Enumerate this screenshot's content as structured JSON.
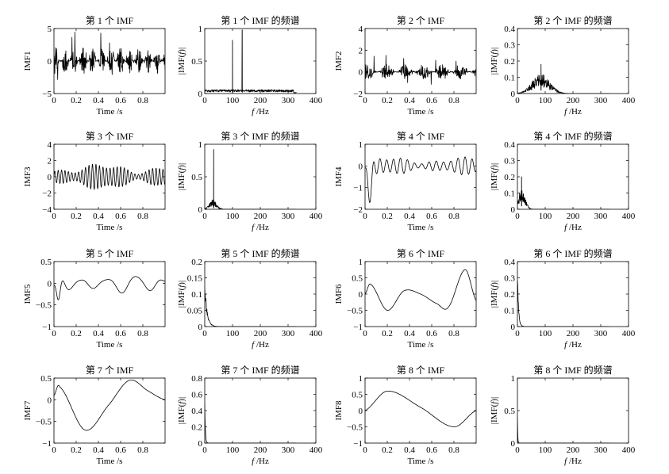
{
  "chart_data": [
    {
      "type": "line",
      "title": "第 1 个 IMF",
      "ylabel": "IMF1",
      "xlabel": "Time /s",
      "xlim": [
        0,
        1
      ],
      "ylim": [
        -5,
        5
      ],
      "xticks": [
        "0",
        "0.2",
        "0.4",
        "0.6",
        "0.8"
      ],
      "yticks": [
        "5",
        "0",
        "−5"
      ],
      "series": [
        {
          "kind": "noise",
          "amplitude": 2.2,
          "spikes": 4.5,
          "freq_hz": 120
        }
      ]
    },
    {
      "type": "line",
      "title": "第 1 个 IMF 的频谱",
      "ylabel": "|IMF(f)|",
      "xlabel": "f /Hz",
      "xlim": [
        0,
        400
      ],
      "ylim": [
        0,
        1
      ],
      "xticks": [
        "0",
        "100",
        "200",
        "300",
        "400"
      ],
      "yticks": [
        "1",
        "0.5",
        "0"
      ],
      "series": [
        {
          "kind": "spectrum",
          "x_max": 330,
          "floor": 0.06,
          "peaks": [
            {
              "f": 100,
              "a": 0.82
            },
            {
              "f": 135,
              "a": 0.98
            }
          ]
        }
      ]
    },
    {
      "type": "line",
      "title": "第 2 个 IMF",
      "ylabel": "IMF2",
      "xlabel": "Time /s",
      "xlim": [
        0,
        1
      ],
      "ylim": [
        -2,
        4
      ],
      "xticks": [
        "0",
        "0.2",
        "0.4",
        "0.6",
        "0.8"
      ],
      "yticks": [
        "4",
        "2",
        "0",
        "−2"
      ],
      "series": [
        {
          "kind": "noise",
          "amplitude": 0.7,
          "spikes": 1.6,
          "freq_hz": 60
        }
      ]
    },
    {
      "type": "line",
      "title": "第 2 个 IMF 的频谱",
      "ylabel": "|IMF(f)|",
      "xlabel": "f /Hz",
      "xlim": [
        0,
        400
      ],
      "ylim": [
        0,
        0.4
      ],
      "xticks": [
        "0",
        "100",
        "200",
        "300",
        "400"
      ],
      "yticks": [
        "0.4",
        "0.3",
        "0.2",
        "0.1",
        "0"
      ],
      "series": [
        {
          "kind": "spectrum",
          "x_max": 330,
          "floor": 0.0,
          "hump": {
            "center": 85,
            "width": 45,
            "height": 0.12
          },
          "peaks": [
            {
              "f": 85,
              "a": 0.18
            }
          ]
        }
      ]
    },
    {
      "type": "line",
      "title": "第 3 个 IMF",
      "ylabel": "IMF3",
      "xlabel": "Time /s",
      "xlim": [
        0,
        1
      ],
      "ylim": [
        -4,
        4
      ],
      "xticks": [
        "0",
        "0.2",
        "0.4",
        "0.6",
        "0.8"
      ],
      "yticks": [
        "4",
        "2",
        "0",
        "−2",
        "−4"
      ],
      "series": [
        {
          "kind": "oscillation",
          "amplitude": 1.4,
          "freq_hz": 32
        }
      ]
    },
    {
      "type": "line",
      "title": "第 3 个 IMF 的频谱",
      "ylabel": "|IMF(f)|",
      "xlabel": "f /Hz",
      "xlim": [
        0,
        400
      ],
      "ylim": [
        0,
        1
      ],
      "xticks": [
        "0",
        "100",
        "200",
        "300",
        "400"
      ],
      "yticks": [
        "1",
        "0.5",
        "0"
      ],
      "series": [
        {
          "kind": "spectrum",
          "x_max": 330,
          "floor": 0.0,
          "hump": {
            "center": 30,
            "width": 18,
            "height": 0.15
          },
          "peaks": [
            {
              "f": 32,
              "a": 0.92
            }
          ]
        }
      ]
    },
    {
      "type": "line",
      "title": "第 4 个 IMF",
      "ylabel": "IMF4",
      "xlabel": "Time /s",
      "xlim": [
        0,
        1
      ],
      "ylim": [
        -2,
        1
      ],
      "xticks": [
        "0",
        "0.2",
        "0.4",
        "0.6",
        "0.8"
      ],
      "yticks": [
        "1",
        "0",
        "−1",
        "−2"
      ],
      "series": [
        {
          "kind": "oscillation",
          "amplitude": 0.35,
          "freq_hz": 16,
          "transient": -1.4
        }
      ]
    },
    {
      "type": "line",
      "title": "第 4 个 IMF 的频谱",
      "ylabel": "|IMF(f)|",
      "xlabel": "f /Hz",
      "xlim": [
        0,
        400
      ],
      "ylim": [
        0,
        0.4
      ],
      "xticks": [
        "0",
        "100",
        "200",
        "300",
        "400"
      ],
      "yticks": [
        "0.4",
        "0.3",
        "0.2",
        "0.1",
        "0"
      ],
      "series": [
        {
          "kind": "spectrum",
          "x_max": 330,
          "floor": 0.0,
          "hump": {
            "center": 15,
            "width": 18,
            "height": 0.12
          },
          "peaks": [
            {
              "f": 15,
              "a": 0.2
            }
          ]
        }
      ]
    },
    {
      "type": "line",
      "title": "第 5 个 IMF",
      "ylabel": "IMF5",
      "xlabel": "Time /s",
      "xlim": [
        0,
        1
      ],
      "ylim": [
        -1,
        0.5
      ],
      "xticks": [
        "0",
        "0.2",
        "0.4",
        "0.6",
        "0.8"
      ],
      "yticks": [
        "0.5",
        "0",
        "−0.5",
        "−1"
      ],
      "series": [
        {
          "kind": "oscillation",
          "amplitude": 0.2,
          "freq_hz": 4.5,
          "transient": -0.6
        }
      ]
    },
    {
      "type": "line",
      "title": "第 5 个 IMF 的频谱",
      "ylabel": "|IMF(f)|",
      "xlabel": "f /Hz",
      "xlim": [
        0,
        400
      ],
      "ylim": [
        0,
        0.2
      ],
      "xticks": [
        "0",
        "100",
        "200",
        "300",
        "400"
      ],
      "yticks": [
        "0.2",
        "0.15",
        "0.1",
        "0.05",
        "0"
      ],
      "series": [
        {
          "kind": "decay",
          "x_max": 330,
          "height": 0.15,
          "scale_hz": 8
        }
      ]
    },
    {
      "type": "line",
      "title": "第 6 个 IMF",
      "ylabel": "IMF6",
      "xlabel": "Time /s",
      "xlim": [
        0,
        1
      ],
      "ylim": [
        -1,
        1
      ],
      "xticks": [
        "0",
        "0.2",
        "0.4",
        "0.6",
        "0.8"
      ],
      "yticks": [
        "1",
        "0.5",
        "0",
        "−0.5",
        "−1"
      ],
      "series": [
        {
          "kind": "smooth",
          "points": [
            [
              0,
              0
            ],
            [
              0.05,
              0.3
            ],
            [
              0.2,
              -0.5
            ],
            [
              0.35,
              0.1
            ],
            [
              0.5,
              0.0
            ],
            [
              0.65,
              -0.3
            ],
            [
              0.75,
              -0.4
            ],
            [
              0.9,
              0.75
            ],
            [
              1,
              -0.2
            ]
          ]
        }
      ]
    },
    {
      "type": "line",
      "title": "第 6 个 IMF 的频谱",
      "ylabel": "|IMF(f)|",
      "xlabel": "f /Hz",
      "xlim": [
        0,
        400
      ],
      "ylim": [
        0,
        0.4
      ],
      "xticks": [
        "0",
        "100",
        "200",
        "300",
        "400"
      ],
      "yticks": [
        "0.4",
        "0.3",
        "0.2",
        "0.1",
        "0"
      ],
      "series": [
        {
          "kind": "decay",
          "x_max": 330,
          "height": 0.36,
          "scale_hz": 4
        }
      ]
    },
    {
      "type": "line",
      "title": "第 7 个 IMF",
      "ylabel": "IMF7",
      "xlabel": "Time /s",
      "xlim": [
        0,
        1
      ],
      "ylim": [
        -1,
        0.5
      ],
      "xticks": [
        "0",
        "0.2",
        "0.4",
        "0.6",
        "0.8"
      ],
      "yticks": [
        "0.5",
        "0",
        "−0.5",
        "−1"
      ],
      "series": [
        {
          "kind": "smooth",
          "points": [
            [
              0,
              0.1
            ],
            [
              0.05,
              0.3
            ],
            [
              0.28,
              -0.7
            ],
            [
              0.5,
              -0.1
            ],
            [
              0.68,
              0.45
            ],
            [
              0.85,
              0.2
            ],
            [
              1,
              0.0
            ]
          ]
        }
      ]
    },
    {
      "type": "line",
      "title": "第 7 个 IMF 的频谱",
      "ylabel": "|IMF(f)|",
      "xlabel": "f /Hz",
      "xlim": [
        0,
        400
      ],
      "ylim": [
        0,
        0.8
      ],
      "xticks": [
        "0",
        "100",
        "200",
        "300",
        "400"
      ],
      "yticks": [
        "0.8",
        "0.6",
        "0.4",
        "0.2",
        "0"
      ],
      "series": [
        {
          "kind": "decay",
          "x_max": 330,
          "height": 0.6,
          "scale_hz": 2
        }
      ]
    },
    {
      "type": "line",
      "title": "第 8 个 IMF",
      "ylabel": "IMF8",
      "xlabel": "Time /s",
      "xlim": [
        0,
        1
      ],
      "ylim": [
        -1,
        1
      ],
      "xticks": [
        "0",
        "0.2",
        "0.4",
        "0.6",
        "0.8"
      ],
      "yticks": [
        "1",
        "0.5",
        "0",
        "−0.5",
        "−1"
      ],
      "series": [
        {
          "kind": "smooth",
          "points": [
            [
              0,
              0.0
            ],
            [
              0.2,
              0.6
            ],
            [
              0.5,
              0.1
            ],
            [
              0.8,
              -0.5
            ],
            [
              1,
              0.0
            ]
          ]
        }
      ]
    },
    {
      "type": "line",
      "title": "第 8 个 IMF 的频谱",
      "ylabel": "|IMF(f)|",
      "xlabel": "f /Hz",
      "xlim": [
        0,
        400
      ],
      "ylim": [
        0,
        1
      ],
      "xticks": [
        "0",
        "100",
        "200",
        "300",
        "400"
      ],
      "yticks": [
        "1",
        "0.5",
        "0"
      ],
      "series": [
        {
          "kind": "decay",
          "x_max": 330,
          "height": 0.5,
          "scale_hz": 1
        }
      ]
    }
  ]
}
